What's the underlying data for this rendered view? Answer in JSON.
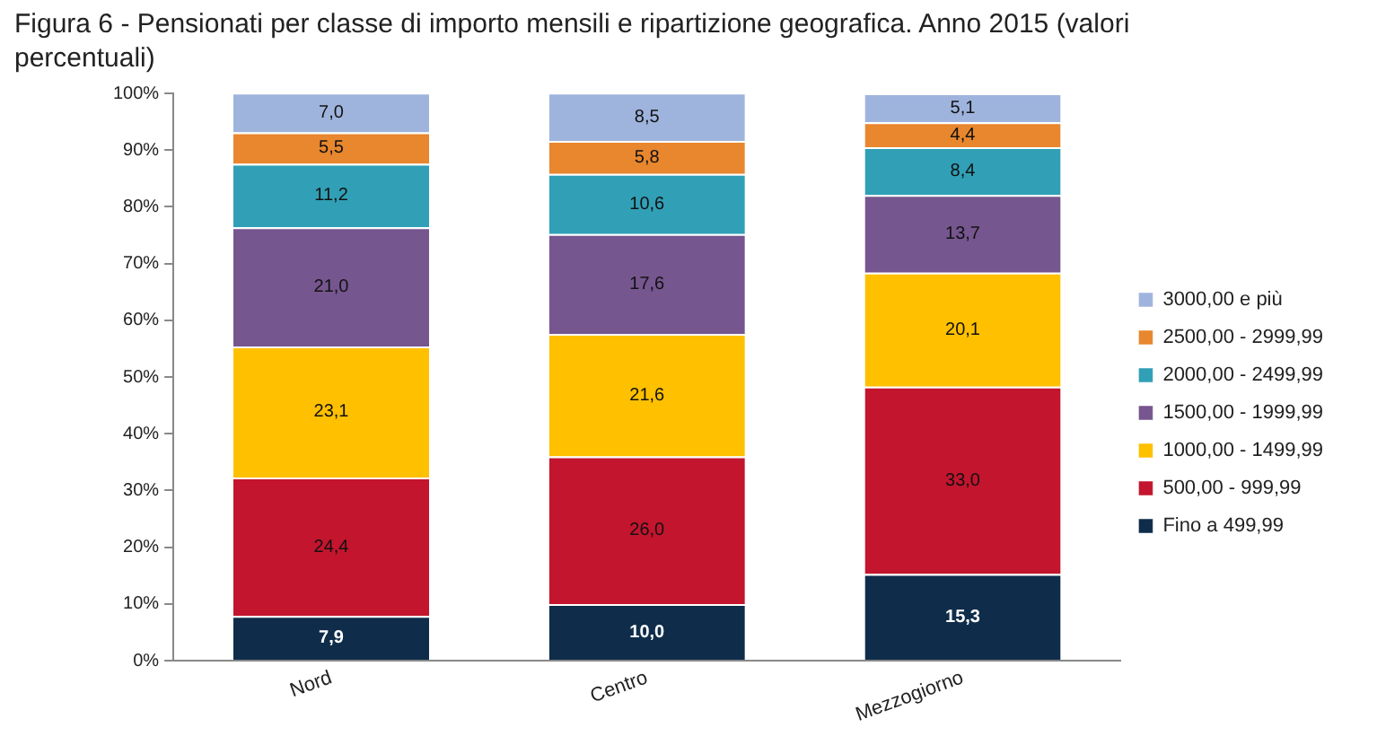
{
  "chart_data": {
    "type": "bar",
    "title": "Figura 6 - Pensionati per classe di importo mensili e ripartizione geografica.  Anno 2015 (valori percentuali)",
    "categories": [
      "Nord",
      "Centro",
      "Mezzogiorno"
    ],
    "stacked": true,
    "series": [
      {
        "name": "Fino a 499,99",
        "color": "#0f2d4a",
        "values": [
          7.9,
          10.0,
          15.3
        ],
        "value_labels": [
          "7,9",
          "10,0",
          "15,3"
        ]
      },
      {
        "name": "500,00 - 999,99",
        "color": "#c3152e",
        "values": [
          24.4,
          26.0,
          33.0
        ],
        "value_labels": [
          "24,4",
          "26,0",
          "33,0"
        ]
      },
      {
        "name": "1000,00 - 1499,99",
        "color": "#ffc000",
        "values": [
          23.1,
          21.6,
          20.1
        ],
        "value_labels": [
          "23,1",
          "21,6",
          "20,1"
        ]
      },
      {
        "name": "1500,00 - 1999,99",
        "color": "#76568f",
        "values": [
          21.0,
          17.6,
          13.7
        ],
        "value_labels": [
          "21,0",
          "17,6",
          "13,7"
        ]
      },
      {
        "name": "2000,00 - 2499,99",
        "color": "#31a0b6",
        "values": [
          11.2,
          10.6,
          8.4
        ],
        "value_labels": [
          "11,2",
          "10,6",
          "8,4"
        ]
      },
      {
        "name": "2500,00 - 2999,99",
        "color": "#e8872e",
        "values": [
          5.5,
          5.8,
          4.4
        ],
        "value_labels": [
          "5,5",
          "5,8",
          "4,4"
        ]
      },
      {
        "name": "3000,00 e più",
        "color": "#9fb4dd",
        "values": [
          7.0,
          8.5,
          5.1
        ],
        "value_labels": [
          "7,0",
          "8,5",
          "5,1"
        ]
      }
    ],
    "ylim": [
      0,
      100
    ],
    "yticks": [
      {
        "value": 0,
        "label": "0%"
      },
      {
        "value": 10,
        "label": "10%"
      },
      {
        "value": 20,
        "label": "20%"
      },
      {
        "value": 30,
        "label": "30%"
      },
      {
        "value": 40,
        "label": "40%"
      },
      {
        "value": 50,
        "label": "50%"
      },
      {
        "value": 60,
        "label": "60%"
      },
      {
        "value": 70,
        "label": "70%"
      },
      {
        "value": 80,
        "label": "80%"
      },
      {
        "value": 90,
        "label": "90%"
      },
      {
        "value": 100,
        "label": "100%"
      }
    ],
    "grid": false,
    "legend": "right"
  }
}
